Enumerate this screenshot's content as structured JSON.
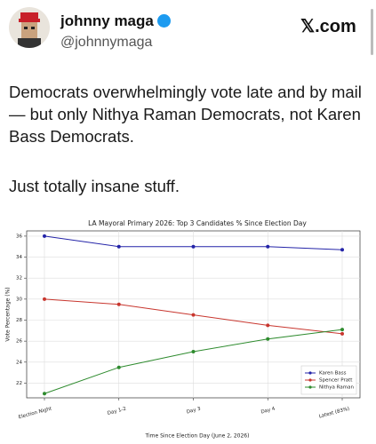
{
  "header": {
    "name": "johnny maga",
    "handle": "@johnnymaga",
    "site": "𝕏.com"
  },
  "tweet": {
    "paragraphs": [
      "Democrats overwhelmingly vote late and by mail — but only Nithya Raman Democrats, not Karen Bass Democrats.",
      "Just totally insane stuff."
    ]
  },
  "chart_data": {
    "type": "line",
    "title": "LA Mayoral Primary 2026: Top 3 Candidates % Since Election Day",
    "x_label": "Time Since Election Day (June 2, 2026)",
    "y_label": "Vote Percentage (%)",
    "categories": [
      "Election Night",
      "Day 1-2",
      "Day 3",
      "Day 4",
      "Latest (83%)"
    ],
    "series": [
      {
        "name": "Karen Bass",
        "color": "#2424a8",
        "values": [
          36,
          35,
          35,
          35,
          34.7
        ]
      },
      {
        "name": "Spencer Pratt",
        "color": "#c8362e",
        "values": [
          30,
          29.5,
          28.5,
          27.5,
          26.7
        ]
      },
      {
        "name": "Nithya Raman",
        "color": "#2e8b2e",
        "values": [
          21,
          23.5,
          25,
          26.2,
          27.1
        ]
      }
    ],
    "ylim": [
      20.6,
      36.5
    ],
    "yticks": [
      22,
      24,
      26,
      28,
      30,
      32,
      34,
      36
    ],
    "grid": true,
    "legend": "lower right"
  }
}
